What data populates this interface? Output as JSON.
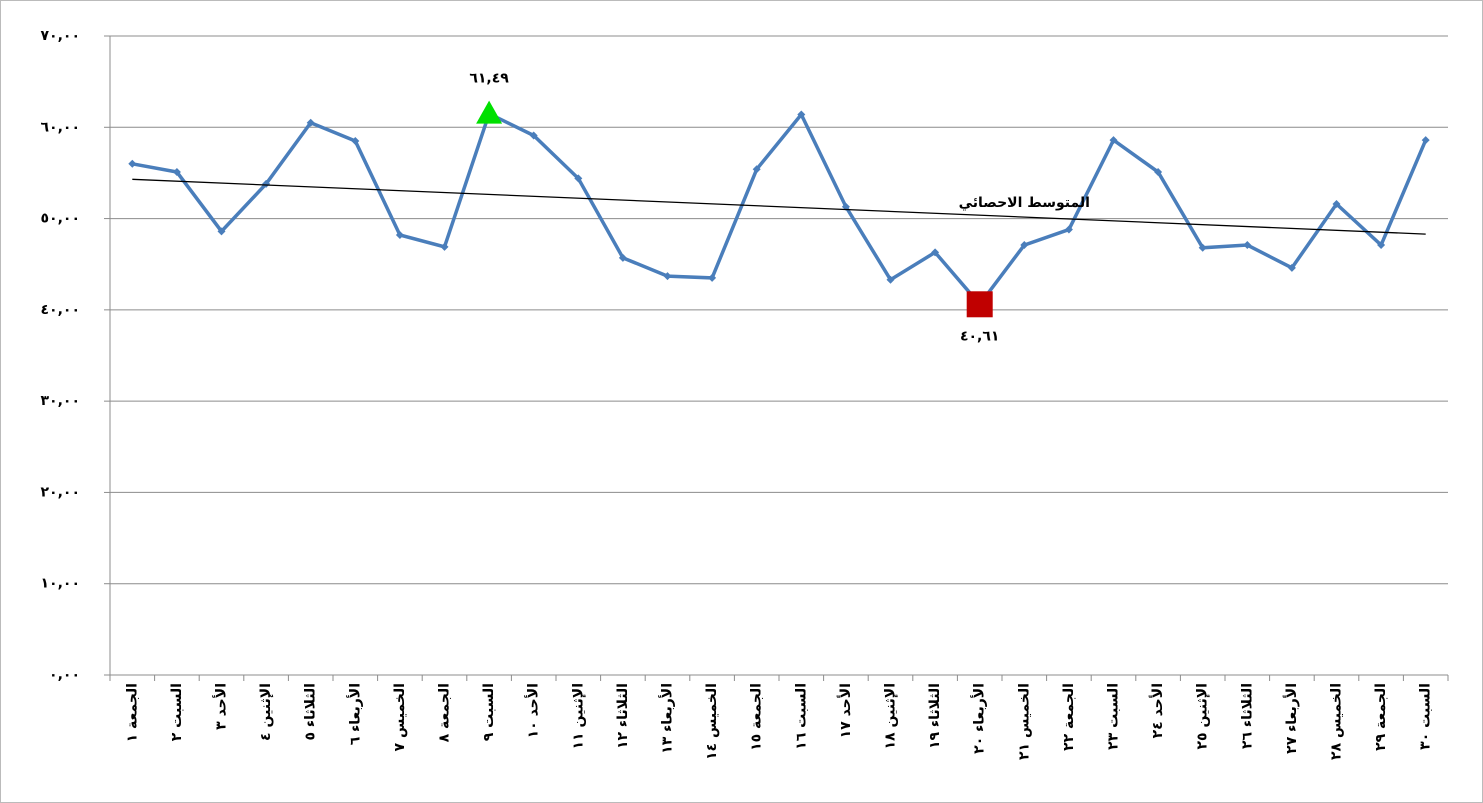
{
  "chart_data": {
    "type": "line",
    "categories": [
      "الجمعة ١",
      "السبت ٢",
      "الأحد ٣",
      "الإثنين ٤",
      "الثلاثاء ٥",
      "الأربعاء ٦",
      "الخميس ٧",
      "الجمعة ٨",
      "السبت ٩",
      "الأحد ١٠",
      "الإثنين ١١",
      "الثلاثاء ١٢",
      "الأربعاء ١٣",
      "الخميس ١٤",
      "الجمعة ١٥",
      "السبت ١٦",
      "الأحد ١٧",
      "الإثنين ١٨",
      "الثلاثاء ١٩",
      "الأربعاء ٢٠",
      "الخميس ٢١",
      "الجمعة ٢٢",
      "السبت ٢٣",
      "الأحد ٢٤",
      "الإثنين ٢٥",
      "الثلاثاء ٢٦",
      "الأربعاء ٢٧",
      "الخميس ٢٨",
      "الجمعة ٢٩",
      "السبت ٣٠"
    ],
    "series": [
      {
        "color": "#4a7ebb",
        "values": [
          56.0,
          55.1,
          48.6,
          53.8,
          60.5,
          58.5,
          48.2,
          46.9,
          61.49,
          59.1,
          54.4,
          45.7,
          43.7,
          43.5,
          55.4,
          61.4,
          51.3,
          43.3,
          46.3,
          40.61,
          47.1,
          48.8,
          58.6,
          55.1,
          46.8,
          47.1,
          44.6,
          51.6,
          47.1,
          58.6
        ]
      }
    ],
    "trend": {
      "label": "المتوسط الاحصائي",
      "values": [
        54.3,
        48.3
      ],
      "color": "#000000"
    },
    "highlights": [
      {
        "index": 8,
        "label": "٦١,٤٩",
        "marker": "triangle",
        "color": "#00e000"
      },
      {
        "index": 19,
        "label": "٤٠,٦١",
        "marker": "square",
        "color": "#c00000"
      }
    ],
    "ylim": [
      0,
      70
    ],
    "yticks": [
      {
        "value": 0,
        "label": "٠,٠٠"
      },
      {
        "value": 10,
        "label": "١٠,٠٠"
      },
      {
        "value": 20,
        "label": "٢٠,٠٠"
      },
      {
        "value": 30,
        "label": "٣٠,٠٠"
      },
      {
        "value": 40,
        "label": "٤٠,٠٠"
      },
      {
        "value": 50,
        "label": "٥٠,٠٠"
      },
      {
        "value": 60,
        "label": "٦٠,٠٠"
      },
      {
        "value": 70,
        "label": "٧٠,٠٠"
      }
    ],
    "grid": true
  }
}
